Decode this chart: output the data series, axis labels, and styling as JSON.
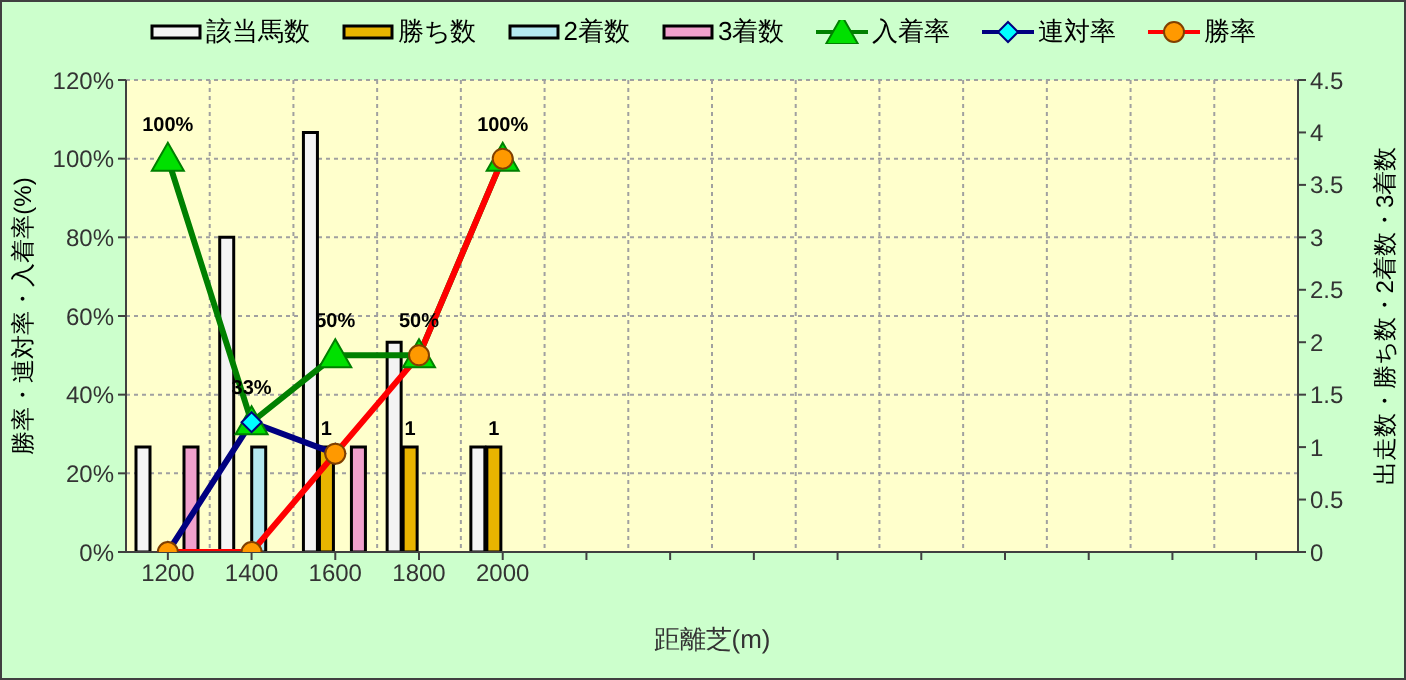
{
  "chart_data": {
    "type": "bar",
    "xlabel": "距離芝(m)",
    "ylabel": "勝率・連対率・入着率(%)",
    "y2label": "出走数・勝ち数・2着数・3着数",
    "categories": [
      "1200",
      "1400",
      "1600",
      "1800",
      "2000",
      null,
      null,
      null,
      null,
      null,
      null,
      null,
      null,
      null
    ],
    "series": [
      {
        "name": "該当馬数",
        "axis": "y2",
        "color": "#f4f4f4",
        "values": [
          1,
          3,
          4,
          2,
          1,
          null,
          null,
          null,
          null,
          null,
          null,
          null,
          null,
          null
        ]
      },
      {
        "name": "勝ち数",
        "axis": "y2",
        "color": "#e8b400",
        "values": [
          null,
          null,
          1,
          1,
          1,
          null,
          null,
          null,
          null,
          null,
          null,
          null,
          null,
          null
        ],
        "value_labels": [
          null,
          null,
          "1",
          "1",
          "1",
          null,
          null,
          null,
          null,
          null,
          null,
          null,
          null,
          null
        ]
      },
      {
        "name": "2着数",
        "axis": "y2",
        "color": "#b4e8f0",
        "values": [
          null,
          1,
          null,
          null,
          null,
          null,
          null,
          null,
          null,
          null,
          null,
          null,
          null,
          null
        ]
      },
      {
        "name": "3着数",
        "axis": "y2",
        "color": "#f0a0cc",
        "values": [
          1,
          null,
          1,
          null,
          null,
          null,
          null,
          null,
          null,
          null,
          null,
          null,
          null,
          null
        ]
      },
      {
        "name": "入着率",
        "type": "line",
        "color": "#008000",
        "marker": "triangle",
        "values": [
          100,
          33,
          50,
          50,
          100,
          null,
          null,
          null,
          null,
          null,
          null,
          null,
          null,
          null
        ],
        "value_labels": [
          "100%",
          "33%",
          "50%",
          "50%",
          null,
          null,
          null,
          null,
          null,
          null,
          null,
          null,
          null,
          null
        ]
      },
      {
        "name": "連対率",
        "type": "line",
        "color": "#000080",
        "marker": "diamond",
        "values": [
          0,
          33,
          25,
          null,
          null,
          null,
          null,
          null,
          null,
          null,
          null,
          null,
          null,
          null
        ]
      },
      {
        "name": "勝率",
        "type": "line",
        "color": "#ff0000",
        "marker": "circle",
        "values": [
          0,
          0,
          25,
          50,
          100,
          null,
          null,
          null,
          null,
          null,
          null,
          null,
          null,
          null
        ],
        "value_labels": [
          null,
          null,
          null,
          null,
          "100%",
          null,
          null,
          null,
          null,
          null,
          null,
          null,
          null,
          null
        ]
      }
    ],
    "ylim": [
      0,
      120
    ],
    "yticks": [
      {
        "value": 0,
        "label": "0%"
      },
      {
        "value": 20,
        "label": "20%"
      },
      {
        "value": 40,
        "label": "40%"
      },
      {
        "value": 60,
        "label": "60%"
      },
      {
        "value": 80,
        "label": "80%"
      },
      {
        "value": 100,
        "label": "100%"
      },
      {
        "value": 120,
        "label": "120%"
      }
    ],
    "y2lim": [
      0,
      4.5
    ],
    "y2ticks": [
      0,
      0.5,
      1,
      1.5,
      2,
      2.5,
      3,
      3.5,
      4,
      4.5
    ],
    "grid": true,
    "legend": "top"
  }
}
